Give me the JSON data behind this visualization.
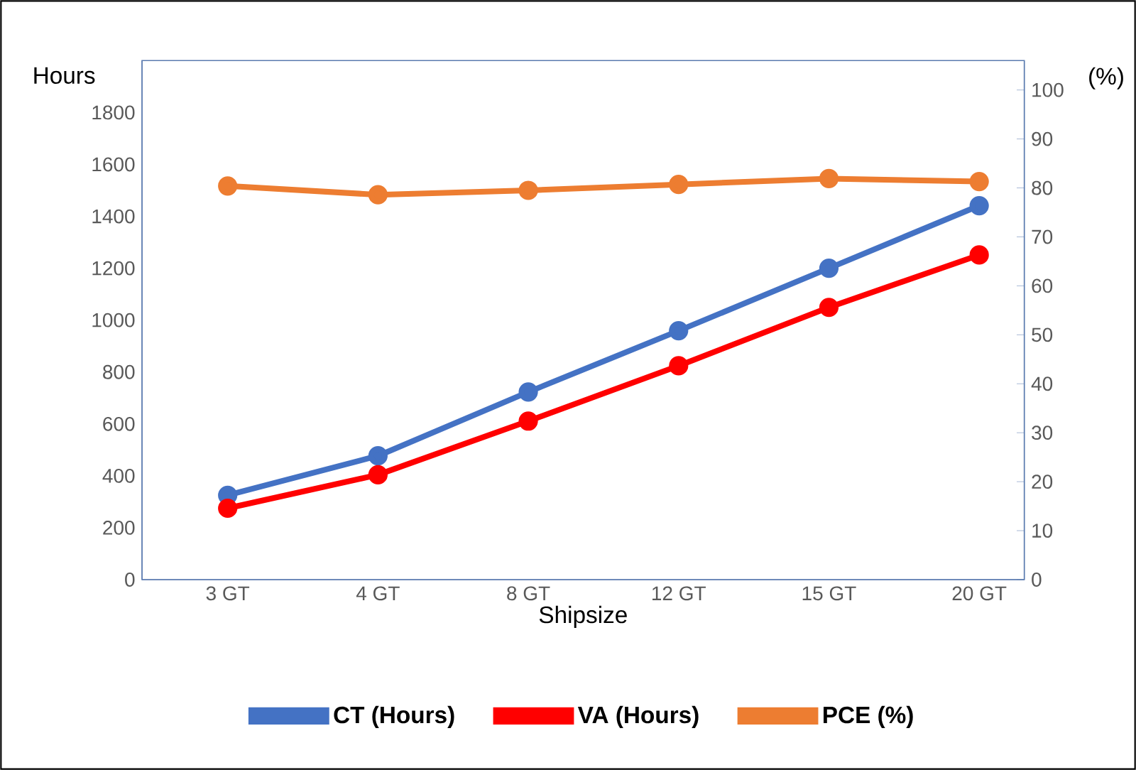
{
  "chart_data": {
    "type": "line",
    "xlabel": "Shipsize",
    "ylabel": "Hours",
    "y2label": "(%)",
    "categories": [
      "3 GT",
      "4 GT",
      "8 GT",
      "12 GT",
      "15 GT",
      "20 GT"
    ],
    "series": [
      {
        "name": "CT (Hours)",
        "color": "#4472c4",
        "values": [
          325,
          477,
          723,
          959,
          1200,
          1441
        ]
      },
      {
        "name": "VA (Hours)",
        "color": "#ff0000",
        "values": [
          275,
          404,
          611,
          824,
          1049,
          1251
        ]
      },
      {
        "name": "PCE (%)",
        "color": "#ed7d31",
        "axis": "y2",
        "values": [
          80.4,
          78.6,
          79.5,
          80.7,
          81.9,
          81.3
        ]
      }
    ],
    "ylim": [
      0,
      2000
    ],
    "yticks": [
      0,
      200,
      400,
      600,
      800,
      1000,
      1200,
      1400,
      1600,
      1800
    ],
    "y2lim": [
      0,
      106
    ],
    "y2ticks": [
      0,
      10,
      20,
      30,
      40,
      50,
      60,
      70,
      80,
      90,
      100
    ],
    "marker": "circle",
    "line_style": "solid",
    "legend": "bottom"
  }
}
